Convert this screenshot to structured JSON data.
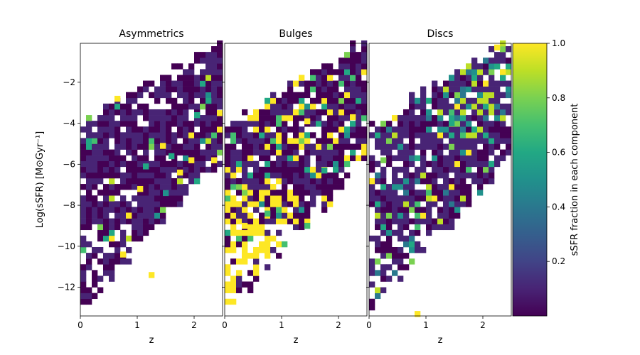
{
  "chart_data": {
    "type": "heatmap",
    "shared_ylabel": "Log(sSFR) [M⊙Gyr⁻¹]",
    "xlabel": "z",
    "xlim": [
      0,
      2.5
    ],
    "ylim": [
      -13.4,
      -0.1
    ],
    "x_ticks": [
      0,
      1,
      2
    ],
    "y_ticks": [
      -2,
      -4,
      -6,
      -8,
      -10,
      -12
    ],
    "bins": {
      "z_step": 0.1,
      "logssfr_step": 0.28,
      "z_start": 0.0,
      "logssfr_start": -13.4
    },
    "panels": [
      {
        "title": "Asymmetrics",
        "description_cells": "ragged triangular region filled mostly with near-zero fraction (dark purple)",
        "column_extent_top": 0.2,
        "column_extent_bottom": -13.4,
        "notable_cells": [
          {
            "z": 0.65,
            "logssfr": -2.8,
            "value": 1.0
          },
          {
            "z": 1.05,
            "logssfr": -7.2,
            "value": 1.0
          },
          {
            "z": 0.85,
            "logssfr": -8.5,
            "value": 1.0
          },
          {
            "z": 1.45,
            "logssfr": -5.1,
            "value": 1.0
          },
          {
            "z": 2.35,
            "logssfr": -5.8,
            "value": 1.0
          },
          {
            "z": 2.45,
            "logssfr": -3.5,
            "value": 1.0
          },
          {
            "z": 1.75,
            "logssfr": -6.4,
            "value": 1.0
          },
          {
            "z": 1.95,
            "logssfr": -5.8,
            "value": 1.0
          },
          {
            "z": 1.15,
            "logssfr": -6.1,
            "value": 0.6
          },
          {
            "z": 2.05,
            "logssfr": -3.6,
            "value": 0.6
          },
          {
            "z": 2.25,
            "logssfr": -2.9,
            "value": 0.55
          },
          {
            "z": 1.6,
            "logssfr": -5.6,
            "value": 0.6
          },
          {
            "z": 1.5,
            "logssfr": -7.4,
            "value": 0.5
          },
          {
            "z": 0.75,
            "logssfr": -10.4,
            "value": 1.0
          },
          {
            "z": 1.25,
            "logssfr": -11.4,
            "value": 1.0
          }
        ]
      },
      {
        "title": "Bulges",
        "description_cells": "ragged triangular region; many cells near 1.0 (yellow) at low z and low sSFR",
        "column_extent_top": 0.2,
        "column_extent_bottom": -13.4,
        "notable_cells": [
          {
            "z": 0.35,
            "logssfr": -9.0,
            "value": 1.0
          },
          {
            "z": 0.55,
            "logssfr": -10.3,
            "value": 1.0
          },
          {
            "z": 1.45,
            "logssfr": -3.9,
            "value": 1.0
          },
          {
            "z": 2.25,
            "logssfr": -3.7,
            "value": 1.0
          },
          {
            "z": 1.75,
            "logssfr": -6.3,
            "value": 0.6
          },
          {
            "z": 0.75,
            "logssfr": -8.4,
            "value": 0.7
          },
          {
            "z": 1.45,
            "logssfr": -9.0,
            "value": 0.7
          }
        ]
      },
      {
        "title": "Discs",
        "description_cells": "ragged triangular region; upper-right cells high fraction (yellow/green), mixed elsewhere",
        "column_extent_top": 0.2,
        "column_extent_bottom": -13.4,
        "notable_cells": [
          {
            "z": 2.25,
            "logssfr": -0.3,
            "value": 1.0
          },
          {
            "z": 2.35,
            "logssfr": -1.5,
            "value": 1.0
          },
          {
            "z": 1.45,
            "logssfr": -4.0,
            "value": 0.55
          },
          {
            "z": 0.25,
            "logssfr": -5.8,
            "value": 0.75
          },
          {
            "z": 0.85,
            "logssfr": -13.3,
            "value": 1.0
          }
        ]
      }
    ],
    "colorbar": {
      "label": "sSFR fraction in each component",
      "ticks": [
        0.2,
        0.4,
        0.6,
        0.8,
        1.0
      ],
      "tick_labels": [
        "0.2",
        "0.4",
        "0.6",
        "0.8",
        "1.0"
      ],
      "range": [
        0.0,
        1.0
      ],
      "colormap": "viridis"
    }
  },
  "text": {
    "panel_titles": [
      "Asymmetrics",
      "Bulges",
      "Discs"
    ],
    "ylabel": "Log(sSFR) [M⊙Gyr⁻¹]",
    "xlabels": [
      "z",
      "z",
      "z"
    ],
    "ytick_labels": [
      "−2",
      "−4",
      "−6",
      "−8",
      "−10",
      "−12"
    ],
    "xtick_labels": [
      "0",
      "1",
      "2"
    ],
    "colorbar_label": "sSFR fraction in each component",
    "colorbar_tick_labels": [
      "0.2",
      "0.4",
      "0.6",
      "0.8",
      "1.0"
    ]
  }
}
